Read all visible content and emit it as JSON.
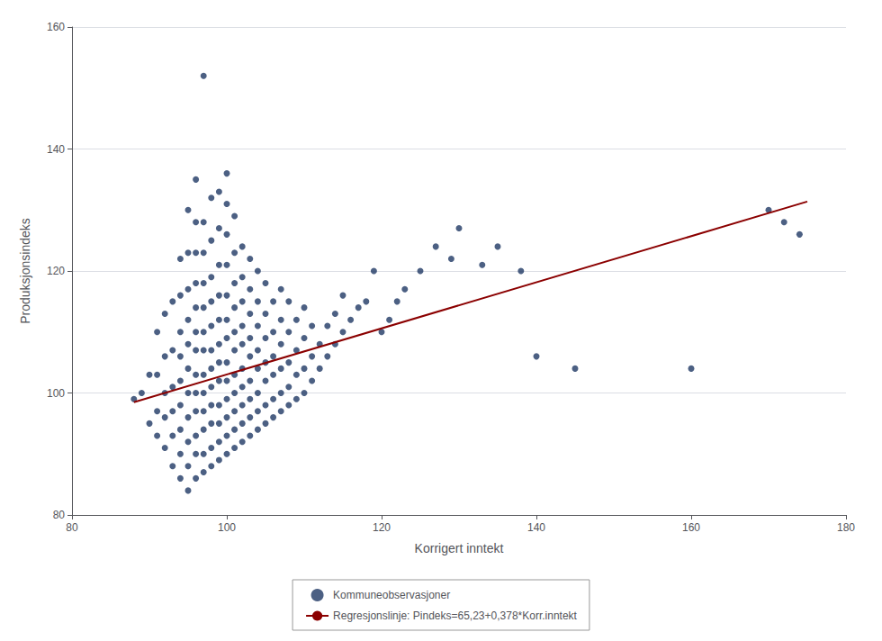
{
  "chart_data": {
    "type": "scatter",
    "xlabel": "Korrigert inntekt",
    "ylabel": "Produksjonsindeks",
    "xlim": [
      80,
      180
    ],
    "ylim": [
      80,
      160
    ],
    "xticks": [
      80,
      100,
      120,
      140,
      160,
      180
    ],
    "yticks": [
      80,
      100,
      120,
      140,
      160
    ],
    "grid": true,
    "legend": "bottom",
    "series": [
      {
        "name": "Kommuneobservasjoner",
        "type": "scatter",
        "marker": "circle",
        "color": "#1F3864",
        "x": [
          88,
          89,
          90,
          90,
          91,
          91,
          91,
          91,
          92,
          92,
          92,
          92,
          92,
          93,
          93,
          93,
          93,
          93,
          93,
          94,
          94,
          94,
          94,
          94,
          94,
          94,
          94,
          94,
          95,
          95,
          95,
          95,
          95,
          95,
          95,
          95,
          95,
          95,
          95,
          96,
          96,
          96,
          96,
          96,
          96,
          96,
          96,
          96,
          96,
          96,
          96,
          96,
          97,
          97,
          97,
          97,
          97,
          97,
          97,
          97,
          97,
          97,
          97,
          97,
          97,
          98,
          98,
          98,
          98,
          98,
          98,
          98,
          98,
          98,
          98,
          98,
          98,
          99,
          99,
          99,
          99,
          99,
          99,
          99,
          99,
          99,
          99,
          99,
          99,
          100,
          100,
          100,
          100,
          100,
          100,
          100,
          100,
          100,
          100,
          100,
          100,
          100,
          101,
          101,
          101,
          101,
          101,
          101,
          101,
          101,
          101,
          101,
          101,
          102,
          102,
          102,
          102,
          102,
          102,
          102,
          102,
          102,
          102,
          103,
          103,
          103,
          103,
          103,
          103,
          103,
          103,
          103,
          104,
          104,
          104,
          104,
          104,
          104,
          104,
          104,
          105,
          105,
          105,
          105,
          105,
          105,
          105,
          106,
          106,
          106,
          106,
          106,
          106,
          107,
          107,
          107,
          107,
          107,
          107,
          108,
          108,
          108,
          108,
          108,
          109,
          109,
          109,
          109,
          110,
          110,
          110,
          110,
          111,
          111,
          111,
          112,
          112,
          113,
          113,
          114,
          114,
          115,
          115,
          116,
          117,
          118,
          119,
          120,
          121,
          122,
          123,
          125,
          127,
          129,
          130,
          133,
          135,
          138,
          140,
          145,
          160,
          170,
          172,
          174
        ],
        "values": [
          99,
          100,
          95,
          103,
          93,
          97,
          103,
          110,
          91,
          96,
          100,
          106,
          113,
          88,
          93,
          97,
          101,
          107,
          115,
          86,
          90,
          94,
          98,
          102,
          106,
          110,
          116,
          122,
          84,
          88,
          92,
          96,
          100,
          104,
          108,
          112,
          117,
          123,
          130,
          86,
          90,
          93,
          97,
          100,
          103,
          107,
          110,
          114,
          118,
          123,
          128,
          135,
          87,
          90,
          94,
          97,
          100,
          103,
          107,
          110,
          114,
          118,
          123,
          128,
          152,
          88,
          91,
          95,
          98,
          101,
          104,
          107,
          111,
          115,
          119,
          125,
          132,
          89,
          92,
          95,
          98,
          102,
          105,
          108,
          112,
          116,
          121,
          127,
          133,
          90,
          93,
          96,
          99,
          102,
          105,
          109,
          112,
          116,
          121,
          126,
          131,
          136,
          91,
          94,
          97,
          100,
          103,
          107,
          110,
          114,
          118,
          123,
          129,
          92,
          95,
          98,
          101,
          104,
          108,
          111,
          115,
          119,
          124,
          93,
          96,
          99,
          102,
          106,
          109,
          113,
          117,
          122,
          94,
          97,
          100,
          104,
          107,
          111,
          115,
          120,
          95,
          98,
          102,
          105,
          109,
          113,
          118,
          96,
          99,
          103,
          106,
          110,
          115,
          97,
          100,
          104,
          108,
          112,
          117,
          98,
          101,
          105,
          110,
          115,
          99,
          103,
          107,
          112,
          100,
          104,
          109,
          114,
          102,
          106,
          111,
          104,
          108,
          106,
          111,
          108,
          113,
          110,
          116,
          112,
          114,
          115,
          120,
          110,
          112,
          115,
          117,
          120,
          124,
          122,
          127,
          121,
          124,
          120,
          106,
          104,
          104,
          130,
          128,
          126
        ]
      },
      {
        "name": "Regresjonslinje: Pindeks=65,23+0,378*Korr.inntekt",
        "type": "line",
        "line_style": "solid",
        "color": "#8B0000",
        "x": [
          88,
          175
        ],
        "values": [
          98.494,
          131.38
        ]
      }
    ]
  }
}
